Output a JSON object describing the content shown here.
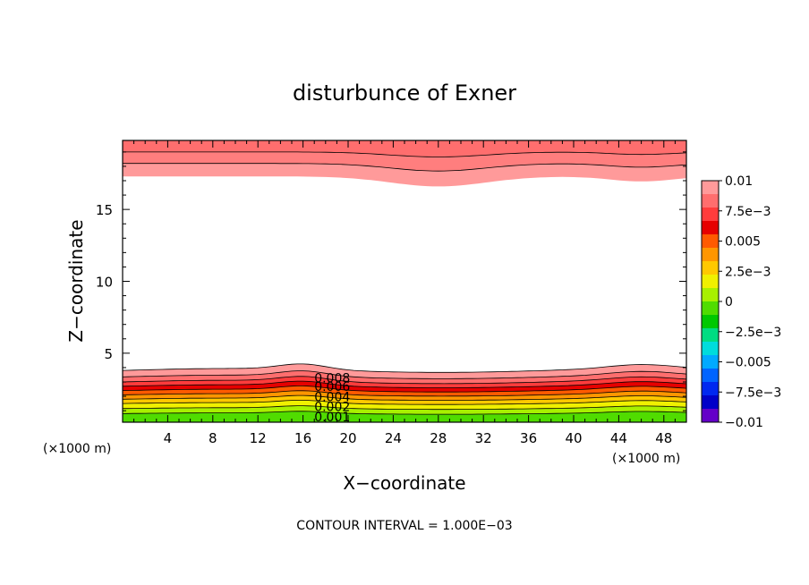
{
  "chart_data": {
    "type": "contour",
    "title": "disturbunce of Exner",
    "xlabel": "X−coordinate",
    "ylabel": "Z−coordinate",
    "x_unit": "(×1000 m)",
    "y_unit": "(×1000 m)",
    "xlim": [
      0,
      50
    ],
    "ylim": [
      0.2,
      19.8
    ],
    "xticks": [
      4,
      8,
      12,
      16,
      20,
      24,
      28,
      32,
      36,
      40,
      44,
      48
    ],
    "yticks": [
      5,
      10,
      15
    ],
    "contour_labels": [
      "0.008",
      "0.006",
      "0.004",
      "0.002",
      "0.001"
    ],
    "footer": "CONTOUR INTERVAL = 1.000E−03",
    "colorbar": {
      "labels": [
        "0.01",
        "7.5e−3",
        "0.005",
        "2.5e−3",
        "0",
        "−2.5e−3",
        "−0.005",
        "−7.5e−3",
        "−0.01"
      ],
      "colors": [
        "#ff9a9a",
        "#ff6e6e",
        "#ff3c3c",
        "#e60000",
        "#ff5a00",
        "#ff9600",
        "#ffc800",
        "#f0f000",
        "#a8f000",
        "#50dc00",
        "#00c800",
        "#00dc82",
        "#00dcdc",
        "#00aaff",
        "#0064ff",
        "#0028f0",
        "#0000c8",
        "#6400c8"
      ]
    },
    "bottom_layer": {
      "note_levels": [
        0.001,
        0.002,
        0.003,
        0.004,
        0.005,
        0.006,
        0.007,
        0.008,
        0.009,
        0.01
      ],
      "colors": [
        "#50dc00",
        "#a8f000",
        "#f0f000",
        "#ffc800",
        "#ff9600",
        "#ff5a00",
        "#e60000",
        "#ff3c3c",
        "#ff6e6e",
        "#ff9a9a"
      ],
      "top_heights": [
        0.8,
        1.15,
        1.5,
        1.8,
        2.1,
        2.4,
        2.7,
        3.0,
        3.35,
        3.8
      ]
    },
    "top_layer": {
      "colors": [
        "#ff9a9a",
        "#ff7e7e",
        "#ff6e6e"
      ],
      "bottom_heights": [
        17.3,
        18.2,
        19.0
      ]
    }
  }
}
